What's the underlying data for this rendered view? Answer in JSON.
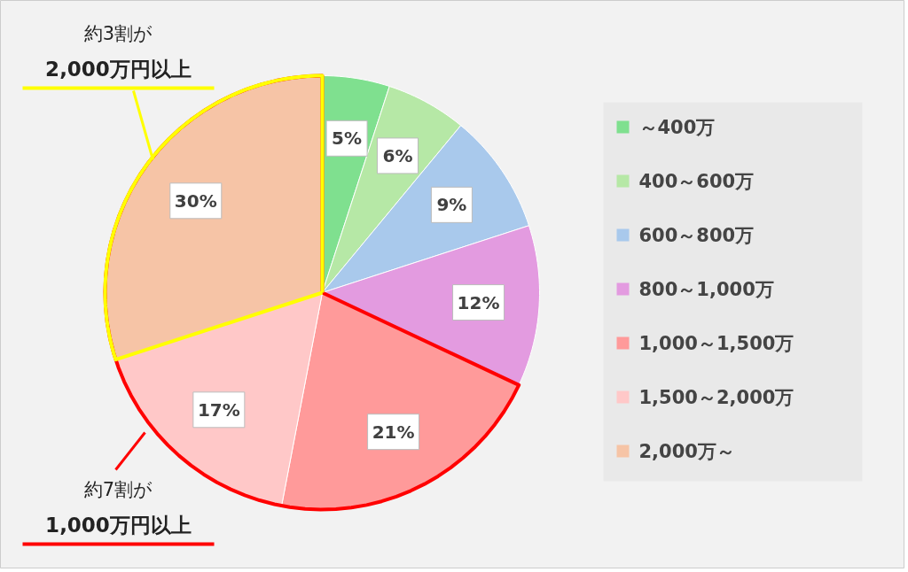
{
  "chart_data": {
    "type": "pie",
    "categories": [
      "～400万",
      "400～600万",
      "600～800万",
      "800～1,000万",
      "1,000～1,500万",
      "1,500～2,000万",
      "2,000万～"
    ],
    "values": [
      5,
      6,
      9,
      12,
      21,
      17,
      30
    ],
    "colors": [
      "#7fe08f",
      "#b6e8a6",
      "#a9c9ec",
      "#e39be0",
      "#ff9a9a",
      "#ffc8c8",
      "#f6c4a6"
    ],
    "value_labels": [
      "5%",
      "6%",
      "9%",
      "12%",
      "21%",
      "17%",
      "30%"
    ],
    "legend": "right",
    "annotations": [
      "約3割が\n2,000万円以上",
      "約7割が\n1,000万円以上"
    ]
  }
}
